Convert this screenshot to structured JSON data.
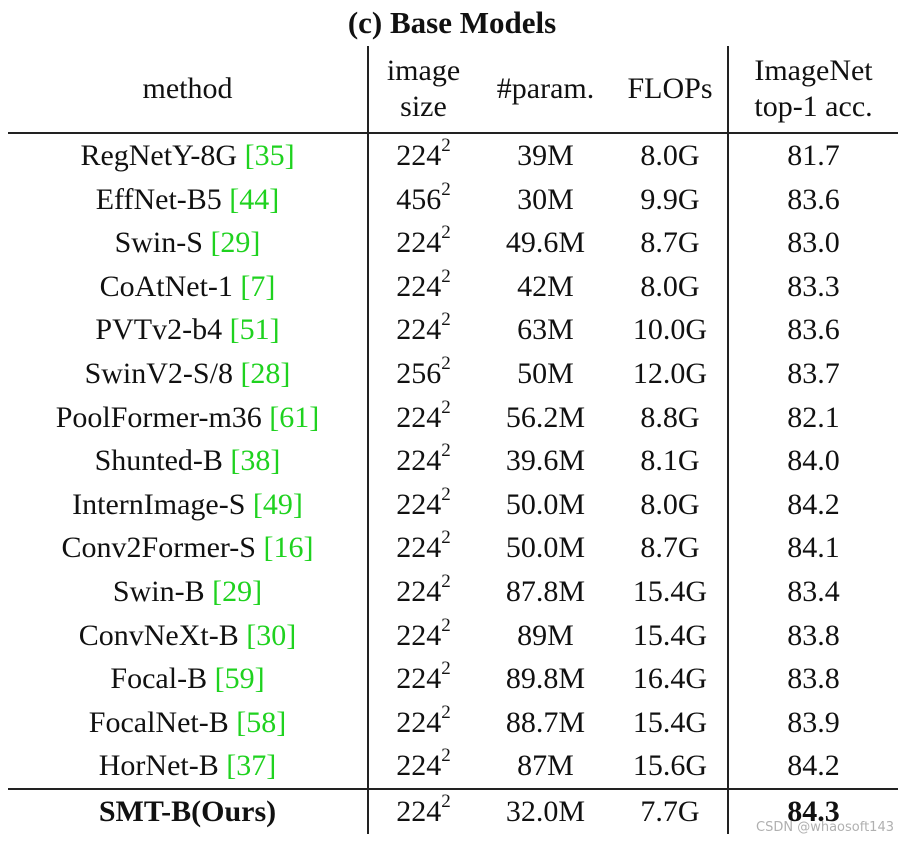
{
  "caption": "(c) Base Models",
  "headers": {
    "method": "method",
    "image_size_line1": "image",
    "image_size_line2": "size",
    "params": "#param.",
    "flops": "FLOPs",
    "acc_line1": "ImageNet",
    "acc_line2": "top-1 acc."
  },
  "rows": [
    {
      "name": "RegNetY-8G ",
      "cite": "[35]",
      "size": "224",
      "exp": "2",
      "params": "39M",
      "flops": "8.0G",
      "acc": "81.7"
    },
    {
      "name": "EffNet-B5  ",
      "cite": "[44]",
      "size": "456",
      "exp": "2",
      "params": "30M",
      "flops": "9.9G",
      "acc": "83.6"
    },
    {
      "name": "Swin-S ",
      "cite": "[29]",
      "size": "224",
      "exp": "2",
      "params": "49.6M",
      "flops": "8.7G",
      "acc": "83.0"
    },
    {
      "name": "CoAtNet-1 ",
      "cite": "[7]",
      "size": "224",
      "exp": "2",
      "params": "42M",
      "flops": "8.0G",
      "acc": "83.3"
    },
    {
      "name": "PVTv2-b4 ",
      "cite": "[51]",
      "size": "224",
      "exp": "2",
      "params": "63M",
      "flops": "10.0G",
      "acc": "83.6"
    },
    {
      "name": "SwinV2-S/8 ",
      "cite": "[28]",
      "size": "256",
      "exp": "2",
      "params": "50M",
      "flops": "12.0G",
      "acc": "83.7"
    },
    {
      "name": "PoolFormer-m36 ",
      "cite": "[61]",
      "size": "224",
      "exp": "2",
      "params": "56.2M",
      "flops": "8.8G",
      "acc": "82.1"
    },
    {
      "name": "Shunted-B ",
      "cite": "[38]",
      "size": "224",
      "exp": "2",
      "params": "39.6M",
      "flops": "8.1G",
      "acc": "84.0"
    },
    {
      "name": "InternImage-S ",
      "cite": "[49]",
      "size": "224",
      "exp": "2",
      "params": "50.0M",
      "flops": "8.0G",
      "acc": "84.2"
    },
    {
      "name": "Conv2Former-S ",
      "cite": "[16]",
      "size": "224",
      "exp": "2",
      "params": "50.0M",
      "flops": "8.7G",
      "acc": "84.1"
    },
    {
      "name": "Swin-B ",
      "cite": "[29]",
      "size": "224",
      "exp": "2",
      "params": "87.8M",
      "flops": "15.4G",
      "acc": "83.4"
    },
    {
      "name": "ConvNeXt-B  ",
      "cite": "[30]",
      "size": "224",
      "exp": "2",
      "params": "89M",
      "flops": "15.4G",
      "acc": "83.8"
    },
    {
      "name": "Focal-B ",
      "cite": "[59]",
      "size": "224",
      "exp": "2",
      "params": "89.8M",
      "flops": "16.4G",
      "acc": "83.8"
    },
    {
      "name": "FocalNet-B ",
      "cite": "[58]",
      "size": "224",
      "exp": "2",
      "params": "88.7M",
      "flops": "15.4G",
      "acc": "83.9"
    },
    {
      "name": "HorNet-B ",
      "cite": "[37]",
      "size": "224",
      "exp": "2",
      "params": "87M",
      "flops": "15.6G",
      "acc": "84.2"
    }
  ],
  "ours": {
    "name": "SMT-B(Ours)",
    "size": "224",
    "exp": "2",
    "params": "32.0M",
    "flops": "7.7G",
    "acc": "84.3"
  },
  "watermark": "CSDN @whaosoft143",
  "colors": {
    "citation": "#1fd21f",
    "text": "#111111"
  }
}
